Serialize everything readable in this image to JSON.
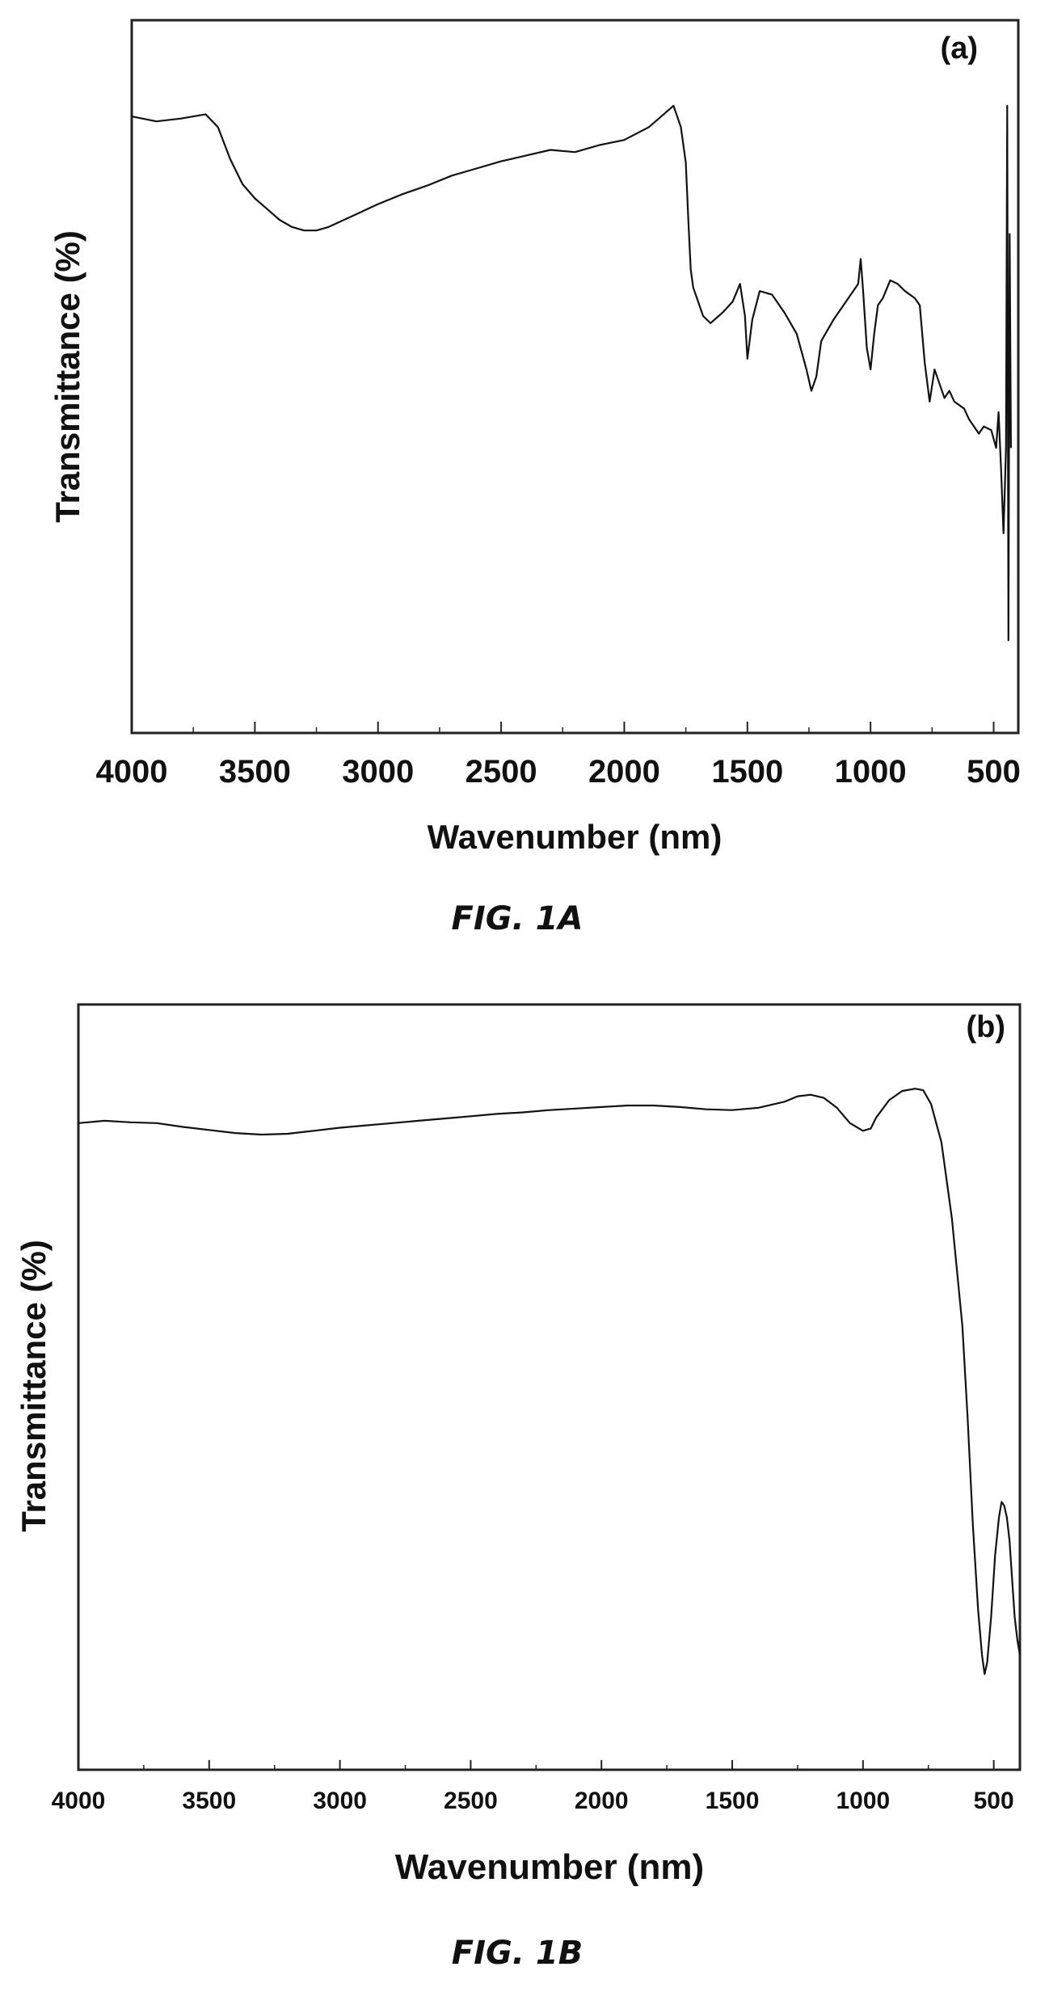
{
  "chart_data": [
    {
      "type": "line",
      "panel_label": "(a)",
      "caption": "FIG. 1A",
      "xlabel": "Wavenumber (nm)",
      "ylabel": "Transmittance (%)",
      "xlim": [
        4000,
        400
      ],
      "x_ticks": [
        "4000",
        "3500",
        "3000",
        "2500",
        "2000",
        "1500",
        "1000",
        "500"
      ],
      "x_tick_values": [
        4000,
        3500,
        3000,
        2500,
        2000,
        1500,
        1000,
        500
      ],
      "ylim": [
        0,
        100
      ],
      "y_ticks_labeled": false,
      "grid": false,
      "series": [
        {
          "color": "#111111",
          "points": [
            [
              4000,
              86.5
            ],
            [
              3900,
              85.8
            ],
            [
              3800,
              86.2
            ],
            [
              3700,
              86.8
            ],
            [
              3650,
              85.0
            ],
            [
              3600,
              80.5
            ],
            [
              3550,
              77.0
            ],
            [
              3500,
              75.0
            ],
            [
              3450,
              73.5
            ],
            [
              3400,
              72.0
            ],
            [
              3350,
              71.0
            ],
            [
              3300,
              70.5
            ],
            [
              3250,
              70.5
            ],
            [
              3200,
              71.0
            ],
            [
              3150,
              71.8
            ],
            [
              3100,
              72.6
            ],
            [
              3000,
              74.2
            ],
            [
              2900,
              75.6
            ],
            [
              2800,
              76.8
            ],
            [
              2700,
              78.2
            ],
            [
              2600,
              79.2
            ],
            [
              2500,
              80.2
            ],
            [
              2400,
              81.0
            ],
            [
              2300,
              81.8
            ],
            [
              2200,
              81.5
            ],
            [
              2100,
              82.5
            ],
            [
              2000,
              83.2
            ],
            [
              1900,
              85.0
            ],
            [
              1850,
              86.5
            ],
            [
              1800,
              88.0
            ],
            [
              1770,
              85.0
            ],
            [
              1750,
              80.0
            ],
            [
              1740,
              72.0
            ],
            [
              1730,
              65.0
            ],
            [
              1720,
              62.5
            ],
            [
              1700,
              60.5
            ],
            [
              1680,
              58.5
            ],
            [
              1650,
              57.5
            ],
            [
              1600,
              59.0
            ],
            [
              1560,
              60.5
            ],
            [
              1530,
              63.0
            ],
            [
              1510,
              58.5
            ],
            [
              1500,
              52.5
            ],
            [
              1480,
              58.0
            ],
            [
              1450,
              62.0
            ],
            [
              1400,
              61.5
            ],
            [
              1350,
              59.0
            ],
            [
              1300,
              56.0
            ],
            [
              1260,
              51.0
            ],
            [
              1240,
              48.0
            ],
            [
              1220,
              50.0
            ],
            [
              1200,
              55.0
            ],
            [
              1150,
              58.0
            ],
            [
              1100,
              60.5
            ],
            [
              1050,
              63.0
            ],
            [
              1040,
              66.5
            ],
            [
              1030,
              62.0
            ],
            [
              1015,
              54.0
            ],
            [
              1000,
              51.0
            ],
            [
              985,
              56.0
            ],
            [
              970,
              60.0
            ],
            [
              950,
              61.0
            ],
            [
              920,
              63.5
            ],
            [
              890,
              63.0
            ],
            [
              860,
              62.0
            ],
            [
              820,
              61.0
            ],
            [
              800,
              60.0
            ],
            [
              780,
              52.0
            ],
            [
              760,
              46.5
            ],
            [
              740,
              51.0
            ],
            [
              720,
              49.0
            ],
            [
              700,
              47.0
            ],
            [
              680,
              48.0
            ],
            [
              660,
              46.5
            ],
            [
              620,
              45.5
            ],
            [
              600,
              44.0
            ],
            [
              560,
              42.0
            ],
            [
              540,
              43.0
            ],
            [
              510,
              42.5
            ],
            [
              490,
              40.0
            ],
            [
              480,
              45.0
            ],
            [
              470,
              37.0
            ],
            [
              460,
              28.0
            ],
            [
              450,
              40.0
            ],
            [
              445,
              88.0
            ],
            [
              440,
              13.0
            ],
            [
              435,
              70.0
            ],
            [
              430,
              40.0
            ]
          ]
        }
      ]
    },
    {
      "type": "line",
      "panel_label": "(b)",
      "caption": "FIG. 1B",
      "xlabel": "Wavenumber (nm)",
      "ylabel": "Transmittance (%)",
      "xlim": [
        4000,
        400
      ],
      "x_ticks": [
        "4000",
        "3500",
        "3000",
        "2500",
        "2000",
        "1500",
        "1000",
        "500"
      ],
      "x_tick_values": [
        4000,
        3500,
        3000,
        2500,
        2000,
        1500,
        1000,
        500
      ],
      "ylim": [
        0,
        100
      ],
      "y_ticks_labeled": false,
      "grid": false,
      "series": [
        {
          "color": "#111111",
          "points": [
            [
              4000,
              84.5
            ],
            [
              3900,
              84.8
            ],
            [
              3800,
              84.6
            ],
            [
              3700,
              84.5
            ],
            [
              3600,
              84.0
            ],
            [
              3500,
              83.6
            ],
            [
              3400,
              83.2
            ],
            [
              3300,
              83.0
            ],
            [
              3200,
              83.1
            ],
            [
              3100,
              83.5
            ],
            [
              3000,
              83.9
            ],
            [
              2900,
              84.2
            ],
            [
              2800,
              84.5
            ],
            [
              2700,
              84.8
            ],
            [
              2600,
              85.1
            ],
            [
              2500,
              85.4
            ],
            [
              2400,
              85.7
            ],
            [
              2300,
              85.9
            ],
            [
              2200,
              86.2
            ],
            [
              2100,
              86.4
            ],
            [
              2000,
              86.6
            ],
            [
              1900,
              86.8
            ],
            [
              1800,
              86.8
            ],
            [
              1700,
              86.6
            ],
            [
              1600,
              86.3
            ],
            [
              1500,
              86.2
            ],
            [
              1400,
              86.5
            ],
            [
              1300,
              87.3
            ],
            [
              1250,
              88.0
            ],
            [
              1200,
              88.2
            ],
            [
              1150,
              87.8
            ],
            [
              1100,
              86.5
            ],
            [
              1050,
              84.5
            ],
            [
              1000,
              83.5
            ],
            [
              970,
              83.8
            ],
            [
              950,
              85.2
            ],
            [
              900,
              87.5
            ],
            [
              850,
              88.7
            ],
            [
              800,
              89.0
            ],
            [
              770,
              88.8
            ],
            [
              740,
              87.0
            ],
            [
              700,
              82.0
            ],
            [
              660,
              72.0
            ],
            [
              620,
              58.0
            ],
            [
              600,
              46.0
            ],
            [
              580,
              32.0
            ],
            [
              560,
              21.0
            ],
            [
              545,
              15.0
            ],
            [
              535,
              12.5
            ],
            [
              525,
              14.0
            ],
            [
              510,
              20.0
            ],
            [
              495,
              28.0
            ],
            [
              480,
              33.0
            ],
            [
              470,
              35.0
            ],
            [
              460,
              34.5
            ],
            [
              450,
              33.0
            ],
            [
              440,
              30.0
            ],
            [
              430,
              25.0
            ],
            [
              420,
              20.0
            ],
            [
              410,
              17.0
            ],
            [
              400,
              15.0
            ]
          ]
        }
      ]
    }
  ]
}
